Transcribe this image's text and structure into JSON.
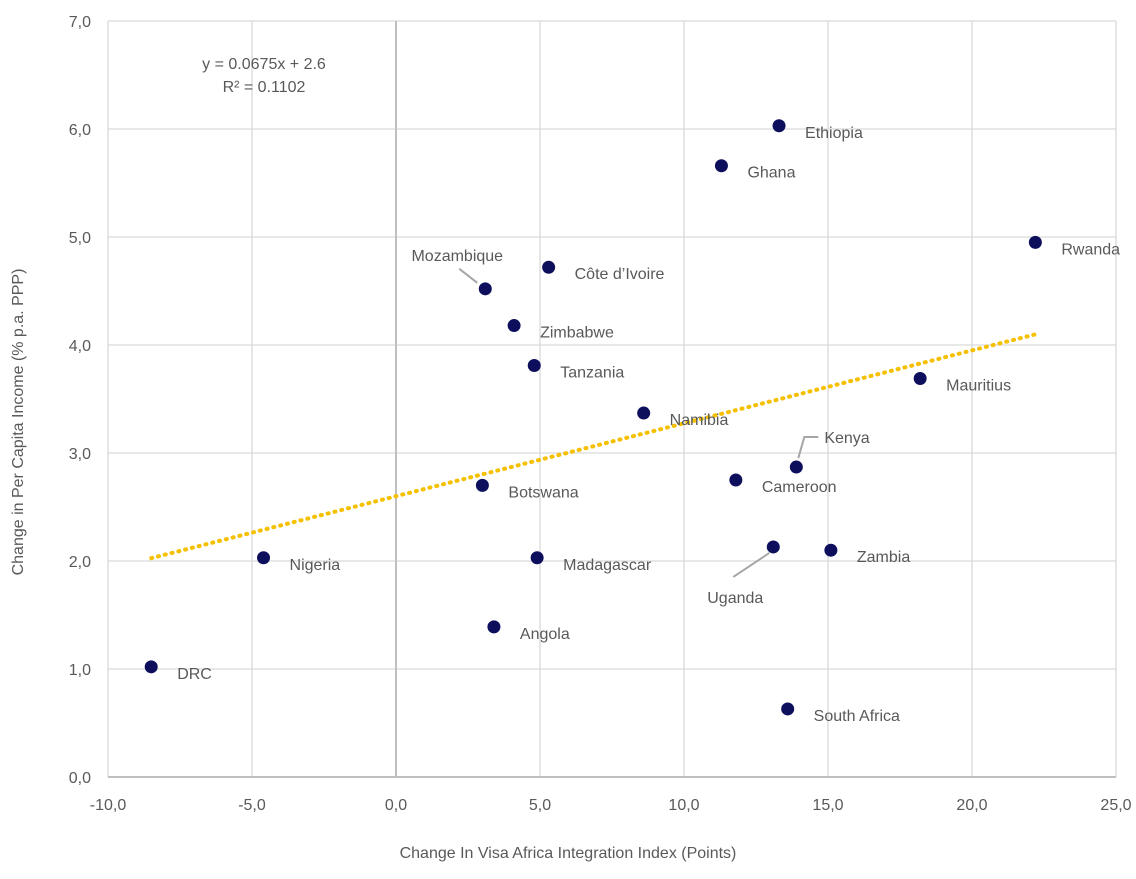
{
  "chart_data": {
    "type": "scatter",
    "title": "",
    "xlabel": "Change In Visa Africa Integration Index (Points)",
    "ylabel": "Change in Per Capita Income (% p.a. PPP)",
    "xlim": [
      -10,
      25
    ],
    "ylim": [
      0,
      7
    ],
    "x_ticks": [
      "-10,0",
      "-5,0",
      "0,0",
      "5,0",
      "10,0",
      "15,0",
      "20,0",
      "25,0"
    ],
    "y_ticks": [
      "0,0",
      "1,0",
      "2,0",
      "3,0",
      "4,0",
      "5,0",
      "6,0",
      "7,0"
    ],
    "grid": true,
    "legend": "none",
    "point_color": "#0d0f5c",
    "trendline_color": "#f5c000",
    "trendline": {
      "equation": "y = 0.0675x + 2.6",
      "r_squared": "R² = 0.1102",
      "slope": 0.0675,
      "intercept": 2.6,
      "x_range": [
        -8.5,
        22.2
      ]
    },
    "points": [
      {
        "label": "Ethiopia",
        "x": 13.3,
        "y": 6.03
      },
      {
        "label": "Ghana",
        "x": 11.3,
        "y": 5.66
      },
      {
        "label": "Rwanda",
        "x": 22.2,
        "y": 4.95
      },
      {
        "label": "Côte d’Ivoire",
        "x": 5.3,
        "y": 4.72
      },
      {
        "label": "Mozambique",
        "x": 3.1,
        "y": 4.52
      },
      {
        "label": "Zimbabwe",
        "x": 4.1,
        "y": 4.18
      },
      {
        "label": "Tanzania",
        "x": 4.8,
        "y": 3.81
      },
      {
        "label": "Mauritius",
        "x": 18.2,
        "y": 3.69
      },
      {
        "label": "Namibia",
        "x": 8.6,
        "y": 3.37
      },
      {
        "label": "Kenya",
        "x": 13.9,
        "y": 2.87
      },
      {
        "label": "Cameroon",
        "x": 11.8,
        "y": 2.75
      },
      {
        "label": "Botswana",
        "x": 3.0,
        "y": 2.7
      },
      {
        "label": "Uganda",
        "x": 13.1,
        "y": 2.13
      },
      {
        "label": "Zambia",
        "x": 15.1,
        "y": 2.1
      },
      {
        "label": "Nigeria",
        "x": -4.6,
        "y": 2.03
      },
      {
        "label": "Madagascar",
        "x": 4.9,
        "y": 2.03
      },
      {
        "label": "Angola",
        "x": 3.4,
        "y": 1.39
      },
      {
        "label": "DRC",
        "x": -8.5,
        "y": 1.02
      },
      {
        "label": "South Africa",
        "x": 13.6,
        "y": 0.63
      }
    ]
  }
}
